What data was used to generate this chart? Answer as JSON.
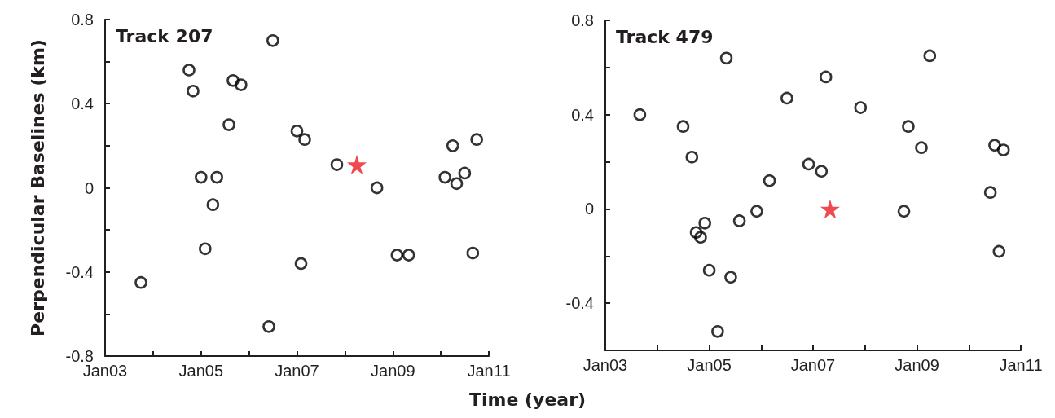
{
  "chart_data": [
    {
      "type": "scatter",
      "title": "Track 207",
      "xlabel": "Time (year)",
      "ylabel": "Perpendicular Baselines (km)",
      "xlim": [
        "2003-01",
        "2011-01"
      ],
      "xticks": [
        {
          "value": "2003-01",
          "label": "Jan03"
        },
        {
          "value": "2004-01",
          "label": null
        },
        {
          "value": "2005-01",
          "label": "Jan05"
        },
        {
          "value": "2006-01",
          "label": null
        },
        {
          "value": "2007-01",
          "label": "Jan07"
        },
        {
          "value": "2008-01",
          "label": null
        },
        {
          "value": "2009-01",
          "label": "Jan09"
        },
        {
          "value": "2010-01",
          "label": null
        },
        {
          "value": "2011-01",
          "label": "Jan11"
        }
      ],
      "ylim": [
        -0.8,
        0.8
      ],
      "yticks": [
        -0.8,
        {
          "value": -0.6,
          "label": null
        },
        -0.4,
        {
          "value": -0.2,
          "label": null
        },
        0,
        {
          "value": 0.2,
          "label": null
        },
        0.4,
        {
          "value": 0.6,
          "label": null
        },
        0.8
      ],
      "grid": false,
      "series": [
        {
          "color": "#000000",
          "marker": "circle",
          "x": [
            "2003-10",
            "2004-10",
            "2004-11",
            "2005-01",
            "2005-02",
            "2005-04",
            "2005-05",
            "2005-08",
            "2005-09",
            "2005-11",
            "2006-07",
            "2006-06",
            "2007-01",
            "2007-03",
            "2007-02",
            "2007-11",
            "2008-09",
            "2009-02",
            "2009-05",
            "2010-02",
            "2010-04",
            "2010-05",
            "2010-07",
            "2010-10",
            "2010-09"
          ],
          "values": [
            -0.45,
            0.56,
            0.46,
            0.05,
            -0.29,
            -0.08,
            0.05,
            0.3,
            0.51,
            0.49,
            0.7,
            -0.66,
            0.27,
            0.23,
            -0.36,
            0.11,
            0.0,
            -0.32,
            -0.32,
            0.05,
            0.2,
            0.02,
            0.07,
            0.23,
            -0.31
          ]
        },
        {
          "color": "#ed1c24",
          "marker": "star",
          "x": [
            "2008-04"
          ],
          "values": [
            0.11
          ]
        }
      ]
    },
    {
      "type": "scatter",
      "title": "Track 479",
      "xlim": [
        "2003-01",
        "2011-01"
      ],
      "xticks": [
        {
          "value": "2003-01",
          "label": "Jan03"
        },
        {
          "value": "2004-01",
          "label": null
        },
        {
          "value": "2005-01",
          "label": "Jan05"
        },
        {
          "value": "2006-01",
          "label": null
        },
        {
          "value": "2007-01",
          "label": "Jan07"
        },
        {
          "value": "2008-01",
          "label": null
        },
        {
          "value": "2009-01",
          "label": "Jan09"
        },
        {
          "value": "2010-01",
          "label": null
        },
        {
          "value": "2011-01",
          "label": "Jan11"
        }
      ],
      "ylim": [
        -0.6,
        0.8
      ],
      "yticks": [
        -0.4,
        {
          "value": -0.2,
          "label": null
        },
        0,
        {
          "value": 0.2,
          "label": null
        },
        0.4,
        {
          "value": 0.6,
          "label": null
        },
        0.8
      ],
      "grid": false,
      "series": [
        {
          "color": "#000000",
          "marker": "circle",
          "x": [
            "2003-09",
            "2004-07",
            "2004-09",
            "2004-10",
            "2004-11",
            "2004-12",
            "2005-01",
            "2005-03",
            "2005-05",
            "2005-06",
            "2005-08",
            "2005-12",
            "2006-03",
            "2006-07",
            "2006-12",
            "2007-03",
            "2007-04",
            "2007-12",
            "2008-10",
            "2008-11",
            "2009-02",
            "2009-04",
            "2010-06",
            "2010-07",
            "2010-09",
            "2010-08"
          ],
          "values": [
            0.4,
            0.35,
            0.22,
            -0.1,
            -0.12,
            -0.06,
            -0.26,
            -0.52,
            0.64,
            -0.29,
            -0.05,
            -0.01,
            0.12,
            0.47,
            0.19,
            0.16,
            0.56,
            0.43,
            -0.01,
            0.35,
            0.26,
            0.65,
            0.07,
            0.27,
            0.25,
            -0.18
          ]
        },
        {
          "color": "#ed1c24",
          "marker": "star",
          "x": [
            "2007-05"
          ],
          "values": [
            0.0
          ]
        }
      ]
    }
  ]
}
